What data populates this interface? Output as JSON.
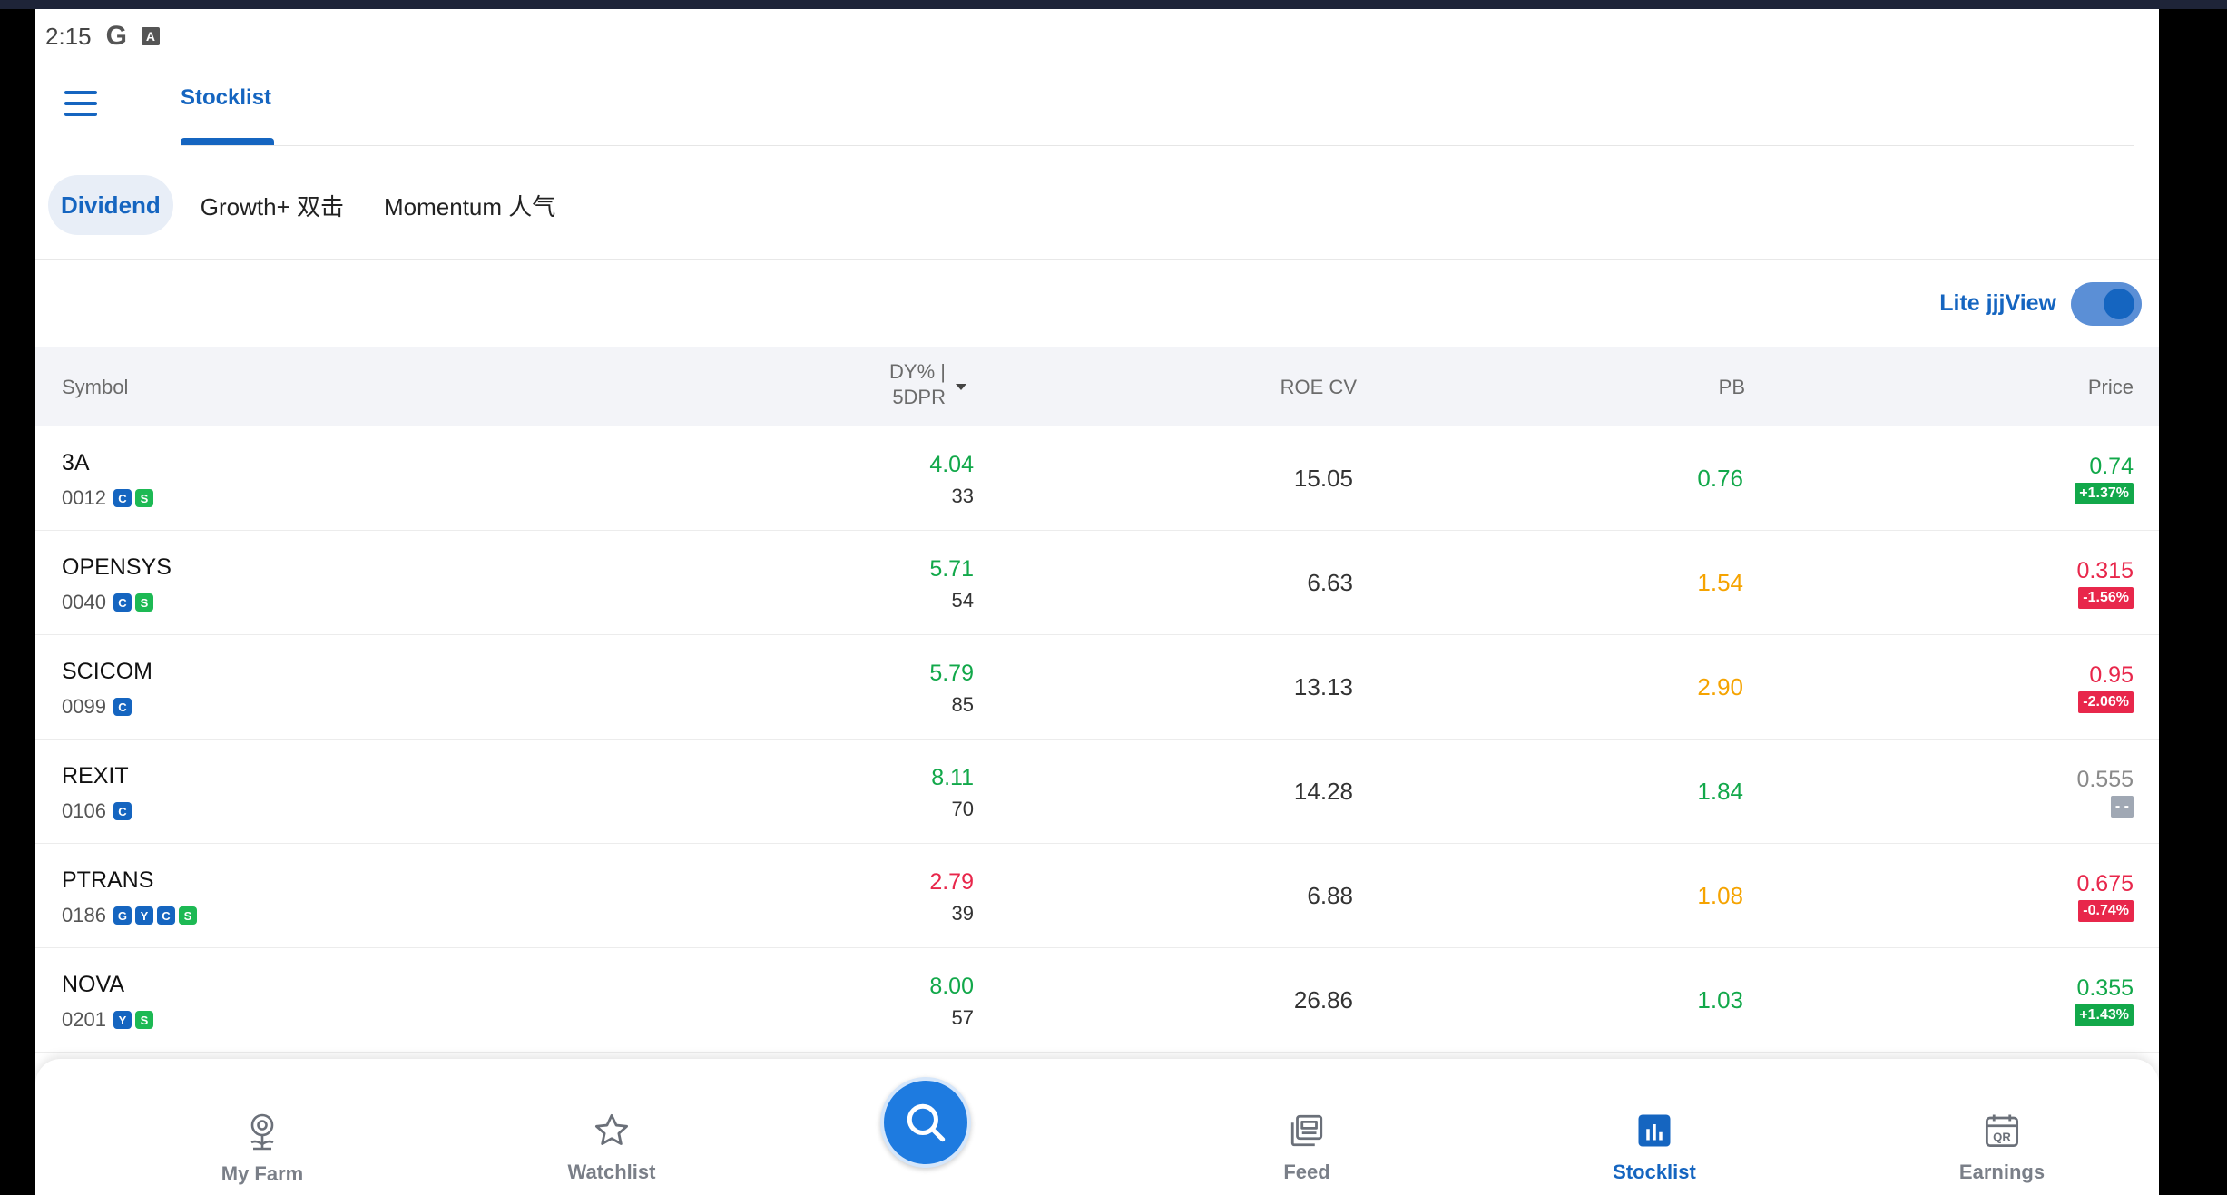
{
  "status_bar": {
    "time": "2:15",
    "g_letter": "G",
    "a_letter": "A"
  },
  "header": {
    "tab": "Stocklist"
  },
  "chips": [
    "Dividend",
    "Growth+ 双击",
    "Momentum 人气"
  ],
  "toggle": {
    "label": "Lite jjjView",
    "on": true
  },
  "table": {
    "headers": {
      "symbol": "Symbol",
      "dy_line1": "DY% |",
      "dy_line2": "5DPR",
      "roe": "ROE CV",
      "pb": "PB",
      "price": "Price"
    },
    "rows": [
      {
        "symbol": "3A",
        "code": "0012",
        "badges": [
          "C",
          "S"
        ],
        "dy": "4.04",
        "dpr": "33",
        "roe": "15.05",
        "pb": "0.76",
        "price": "0.74",
        "change": "+1.37%"
      },
      {
        "symbol": "OPENSYS",
        "code": "0040",
        "badges": [
          "C",
          "S"
        ],
        "dy": "5.71",
        "dpr": "54",
        "roe": "6.63",
        "pb": "1.54",
        "price": "0.315",
        "change": "-1.56%"
      },
      {
        "symbol": "SCICOM",
        "code": "0099",
        "badges": [
          "C"
        ],
        "dy": "5.79",
        "dpr": "85",
        "roe": "13.13",
        "pb": "2.90",
        "price": "0.95",
        "change": "-2.06%"
      },
      {
        "symbol": "REXIT",
        "code": "0106",
        "badges": [
          "C"
        ],
        "dy": "8.11",
        "dpr": "70",
        "roe": "14.28",
        "pb": "1.84",
        "price": "0.555",
        "change": "- -"
      },
      {
        "symbol": "PTRANS",
        "code": "0186",
        "badges": [
          "G",
          "Y",
          "C",
          "S"
        ],
        "dy": "2.79",
        "dpr": "39",
        "roe": "6.88",
        "pb": "1.08",
        "price": "0.675",
        "change": "-0.74%"
      },
      {
        "symbol": "NOVA",
        "code": "0201",
        "badges": [
          "Y",
          "S"
        ],
        "dy": "8.00",
        "dpr": "57",
        "roe": "26.86",
        "pb": "1.03",
        "price": "0.355",
        "change": "+1.43%"
      }
    ]
  },
  "bottom_nav": {
    "my_farm": "My Farm",
    "watchlist": "Watchlist",
    "feed": "Feed",
    "stocklist": "Stocklist",
    "earnings": "Earnings",
    "qr_text": "QR"
  },
  "colors": {
    "accent": "#1565c0",
    "green": "#12a84a",
    "red": "#e8274b",
    "orange": "#f5a300"
  }
}
